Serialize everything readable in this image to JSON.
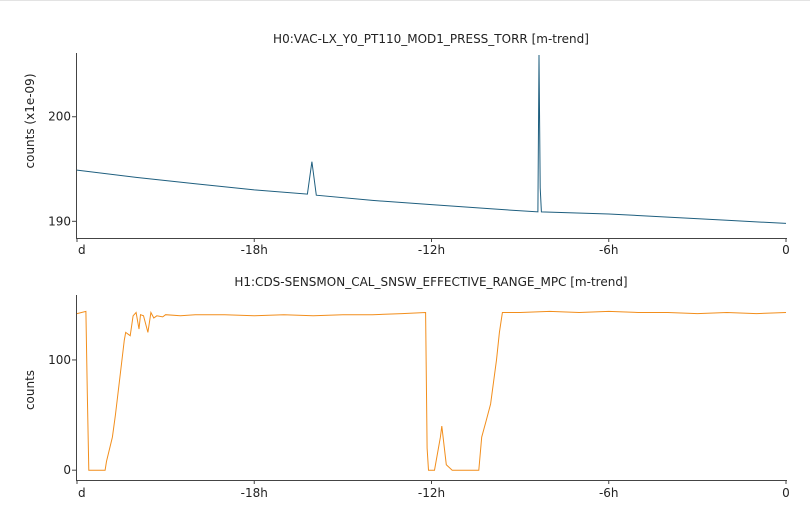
{
  "chart_data": [
    {
      "type": "line",
      "title": "H0:VAC-LX_Y0_PT110_MOD1_PRESS_TORR [m-trend]",
      "ylabel": "counts (x1e-09)",
      "xlabel": "",
      "x_tick_labels": [
        "d",
        "-18h",
        "-12h",
        "-6h",
        "0"
      ],
      "x_tick_values": [
        -24,
        -18,
        -12,
        -6,
        0
      ],
      "xlim": [
        -24,
        0
      ],
      "ylim": [
        188.5,
        206
      ],
      "y_ticks": [
        190,
        200
      ],
      "grid": false,
      "color": "#1f5f7f",
      "series": [
        {
          "x": [
            -24,
            -22,
            -20,
            -18,
            -16.2,
            -16.05,
            -15.9,
            -14,
            -12,
            -10,
            -8.4,
            -8.36,
            -8.32,
            -8.28,
            -6,
            -4,
            -2,
            0
          ],
          "y": [
            194.9,
            194.2,
            193.6,
            193.0,
            192.6,
            195.7,
            192.5,
            192.0,
            191.6,
            191.2,
            190.9,
            205.9,
            193.2,
            190.9,
            190.7,
            190.4,
            190.1,
            189.8
          ]
        }
      ]
    },
    {
      "type": "line",
      "title": "H1:CDS-SENSMON_CAL_SNSW_EFFECTIVE_RANGE_MPC [m-trend]",
      "ylabel": "counts",
      "xlabel": "",
      "x_tick_labels": [
        "d",
        "-18h",
        "-12h",
        "-6h",
        "0"
      ],
      "x_tick_values": [
        -24,
        -18,
        -12,
        -6,
        0
      ],
      "xlim": [
        -24,
        0
      ],
      "ylim": [
        -8,
        158
      ],
      "y_ticks": [
        0,
        100
      ],
      "grid": false,
      "color": "#f28e1c",
      "series": [
        {
          "x": [
            -24,
            -23.7,
            -23.65,
            -23.6,
            -23.05,
            -23.0,
            -22.8,
            -22.7,
            -22.5,
            -22.4,
            -22.35,
            -22.2,
            -22.1,
            -22.0,
            -21.9,
            -21.85,
            -21.75,
            -21.6,
            -21.5,
            -21.4,
            -21.3,
            -21.1,
            -21.0,
            -20.5,
            -20.0,
            -19.0,
            -18.0,
            -17.0,
            -16.0,
            -15.0,
            -14.0,
            -13.0,
            -12.2,
            -12.15,
            -12.1,
            -11.9,
            -11.7,
            -11.65,
            -11.5,
            -11.3,
            -10.8,
            -10.75,
            -10.4,
            -10.3,
            -10.15,
            -10.0,
            -9.8,
            -9.7,
            -9.6,
            -9.0,
            -8.0,
            -7.0,
            -6.0,
            -5.0,
            -4.0,
            -3.0,
            -2.0,
            -1.0,
            0
          ],
          "y": [
            142,
            144,
            70,
            0,
            0,
            8,
            30,
            50,
            95,
            118,
            125,
            122,
            140,
            143,
            128,
            141,
            140,
            125,
            143,
            138,
            140,
            139,
            141,
            140,
            141,
            141,
            140,
            141,
            140,
            141,
            141,
            142,
            143,
            20,
            0,
            0,
            30,
            40,
            5,
            0,
            0,
            0,
            0,
            30,
            45,
            60,
            100,
            125,
            143,
            143,
            144,
            143,
            144,
            143,
            143,
            142,
            143,
            142,
            143
          ]
        }
      ]
    }
  ]
}
